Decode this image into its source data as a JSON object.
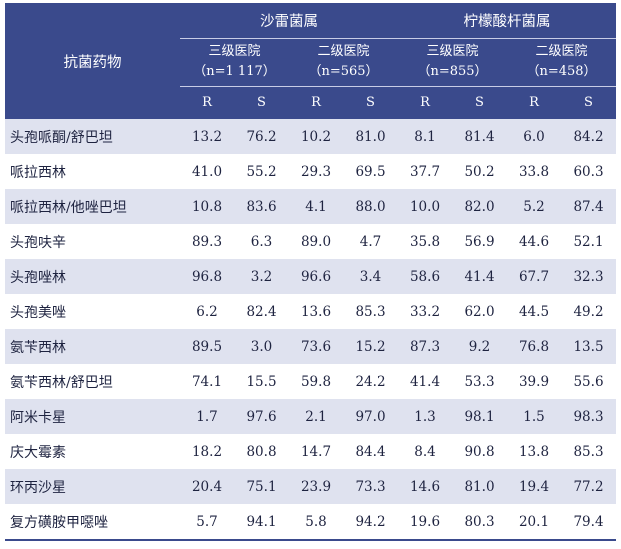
{
  "header": {
    "drug_column": "抗菌药物",
    "groups": [
      {
        "name": "沙雷菌属",
        "hospitals": [
          {
            "label": "三级医院",
            "n_label": "（n=1 117）"
          },
          {
            "label": "二级医院",
            "n_label": "（n=565）"
          }
        ]
      },
      {
        "name": "柠檬酸杆菌属",
        "hospitals": [
          {
            "label": "三级医院",
            "n_label": "（n=855）"
          },
          {
            "label": "二级医院",
            "n_label": "（n=458）"
          }
        ]
      }
    ],
    "r_label": "R",
    "s_label": "S"
  },
  "rows": [
    {
      "drug": "头孢哌酮/舒巴坦",
      "values": [
        "13.2",
        "76.2",
        "10.2",
        "81.0",
        "8.1",
        "81.4",
        "6.0",
        "84.2"
      ]
    },
    {
      "drug": "哌拉西林",
      "values": [
        "41.0",
        "55.2",
        "29.3",
        "69.5",
        "37.7",
        "50.2",
        "33.8",
        "60.3"
      ]
    },
    {
      "drug": "哌拉西林/他唑巴坦",
      "values": [
        "10.8",
        "83.6",
        "4.1",
        "88.0",
        "10.0",
        "82.0",
        "5.2",
        "87.4"
      ]
    },
    {
      "drug": "头孢呋辛",
      "values": [
        "89.3",
        "6.3",
        "89.0",
        "4.7",
        "35.8",
        "56.9",
        "44.6",
        "52.1"
      ]
    },
    {
      "drug": "头孢唑林",
      "values": [
        "96.8",
        "3.2",
        "96.6",
        "3.4",
        "58.6",
        "41.4",
        "67.7",
        "32.3"
      ]
    },
    {
      "drug": "头孢美唑",
      "values": [
        "6.2",
        "82.4",
        "13.6",
        "85.3",
        "33.2",
        "62.0",
        "44.5",
        "49.2"
      ]
    },
    {
      "drug": "氨苄西林",
      "values": [
        "89.5",
        "3.0",
        "73.6",
        "15.2",
        "87.3",
        "9.2",
        "76.8",
        "13.5"
      ]
    },
    {
      "drug": "氨苄西林/舒巴坦",
      "values": [
        "74.1",
        "15.5",
        "59.8",
        "24.2",
        "41.4",
        "53.3",
        "39.9",
        "55.6"
      ]
    },
    {
      "drug": "阿米卡星",
      "values": [
        "1.7",
        "97.6",
        "2.1",
        "97.0",
        "1.3",
        "98.1",
        "1.5",
        "98.3"
      ]
    },
    {
      "drug": "庆大霉素",
      "values": [
        "18.2",
        "80.8",
        "14.7",
        "84.4",
        "8.4",
        "90.8",
        "13.8",
        "85.3"
      ]
    },
    {
      "drug": "环丙沙星",
      "values": [
        "20.4",
        "75.1",
        "23.9",
        "73.3",
        "14.6",
        "81.0",
        "19.4",
        "77.2"
      ]
    },
    {
      "drug": "复方磺胺甲噁唑",
      "values": [
        "5.7",
        "94.1",
        "5.8",
        "94.2",
        "19.6",
        "80.3",
        "20.1",
        "79.4"
      ]
    }
  ]
}
